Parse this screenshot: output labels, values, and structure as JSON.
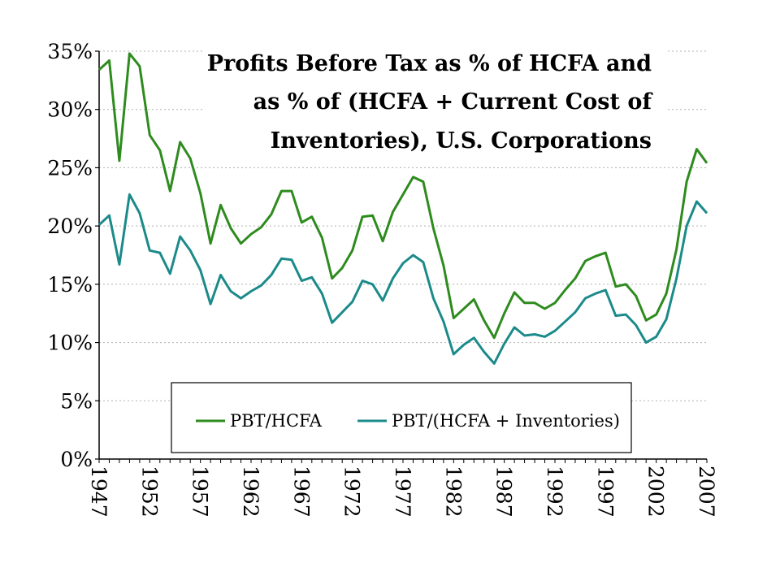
{
  "chart_data": {
    "type": "line",
    "title_lines": [
      "Profits Before Tax as % of HCFA and",
      "as % of (HCFA + Current Cost of",
      "Inventories), U.S. Corporations"
    ],
    "xlabel": "",
    "ylabel": "",
    "xlim": [
      1947,
      2007
    ],
    "ylim": [
      0,
      35
    ],
    "x_ticks": [
      "1947",
      "1952",
      "1957",
      "1962",
      "1967",
      "1972",
      "1977",
      "1982",
      "1987",
      "1992",
      "1997",
      "2002",
      "2007"
    ],
    "y_ticks": [
      "0%",
      "5%",
      "10%",
      "15%",
      "20%",
      "25%",
      "30%",
      "35%"
    ],
    "grid": "horizontal dotted",
    "legend_position": "bottom-center",
    "x": [
      1947,
      1948,
      1949,
      1950,
      1951,
      1952,
      1953,
      1954,
      1955,
      1956,
      1957,
      1958,
      1959,
      1960,
      1961,
      1962,
      1963,
      1964,
      1965,
      1966,
      1967,
      1968,
      1969,
      1970,
      1971,
      1972,
      1973,
      1974,
      1975,
      1976,
      1977,
      1978,
      1979,
      1980,
      1981,
      1982,
      1983,
      1984,
      1985,
      1986,
      1987,
      1988,
      1989,
      1990,
      1991,
      1992,
      1993,
      1994,
      1995,
      1996,
      1997,
      1998,
      1999,
      2000,
      2001,
      2002,
      2003,
      2004,
      2005,
      2006,
      2007
    ],
    "series": [
      {
        "name": "PBT/HCFA",
        "color": "#2e8b1e",
        "values": [
          33.4,
          34.2,
          25.6,
          34.8,
          33.7,
          27.8,
          26.5,
          23.0,
          27.2,
          25.8,
          22.8,
          18.5,
          21.8,
          19.8,
          18.5,
          19.3,
          19.9,
          21.0,
          23.0,
          23.0,
          20.3,
          20.8,
          19.0,
          15.5,
          16.4,
          17.9,
          20.8,
          20.9,
          18.7,
          21.2,
          22.7,
          24.2,
          23.8,
          19.8,
          16.6,
          12.1,
          12.9,
          13.7,
          11.9,
          10.4,
          12.5,
          14.3,
          13.4,
          13.4,
          12.9,
          13.4,
          14.5,
          15.5,
          17.0,
          17.4,
          17.7,
          14.8,
          15.0,
          14.0,
          11.9,
          12.4,
          14.2,
          18.0,
          23.8,
          26.6,
          25.4
        ]
      },
      {
        "name": "PBT/(HCFA + Inventories)",
        "color": "#1c8a8a",
        "values": [
          20.1,
          20.9,
          16.7,
          22.7,
          21.1,
          17.9,
          17.7,
          15.9,
          19.1,
          17.9,
          16.2,
          13.3,
          15.8,
          14.4,
          13.8,
          14.4,
          14.9,
          15.8,
          17.2,
          17.1,
          15.3,
          15.6,
          14.2,
          11.7,
          12.6,
          13.5,
          15.3,
          15.0,
          13.6,
          15.5,
          16.8,
          17.5,
          16.9,
          13.8,
          11.8,
          9.0,
          9.8,
          10.4,
          9.2,
          8.2,
          9.9,
          11.3,
          10.6,
          10.7,
          10.5,
          11.0,
          11.8,
          12.6,
          13.8,
          14.2,
          14.5,
          12.3,
          12.4,
          11.5,
          10.0,
          10.5,
          12.0,
          15.5,
          20.0,
          22.1,
          21.1
        ]
      }
    ]
  }
}
